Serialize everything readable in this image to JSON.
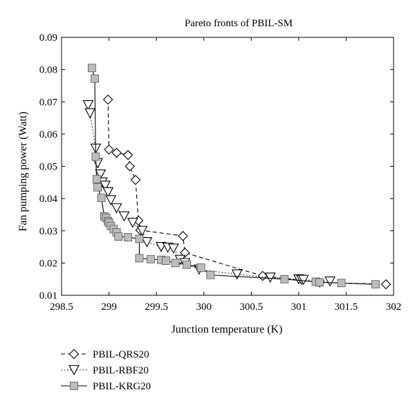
{
  "chart_data": {
    "type": "scatter",
    "title": "Pareto fronts of PBIL-SM",
    "xlabel": "Junction temperature (K)",
    "ylabel": "Fan pumping power (Watt)",
    "xlim": [
      298.5,
      302
    ],
    "ylim": [
      0.01,
      0.09
    ],
    "xticks": [
      "298.5",
      "299",
      "299.5",
      "300",
      "300.5",
      "301",
      "301.5",
      "302"
    ],
    "yticks": [
      "0.01",
      "0.02",
      "0.03",
      "0.04",
      "0.05",
      "0.06",
      "0.07",
      "0.08",
      "0.09"
    ],
    "grid": false,
    "legend_position": "below-left",
    "series": [
      {
        "name": "PBIL-QRS20",
        "marker": "diamond",
        "line_style": "dashed",
        "color": "#000000",
        "x": [
          298.99,
          299.0,
          299.08,
          299.2,
          299.22,
          299.28,
          299.31,
          299.33,
          299.78,
          299.8,
          300.62,
          301.22,
          301.92
        ],
        "y": [
          0.0707,
          0.0552,
          0.0542,
          0.0535,
          0.05,
          0.0458,
          0.0332,
          0.0302,
          0.0284,
          0.0232,
          0.016,
          0.014,
          0.0134
        ]
      },
      {
        "name": "PBIL-RBF20",
        "marker": "triangle-down",
        "line_style": "dotted",
        "color": "#000000",
        "x": [
          298.78,
          298.8,
          298.86,
          298.88,
          298.91,
          298.93,
          298.96,
          298.99,
          299.02,
          299.08,
          299.16,
          299.25,
          299.35,
          299.4,
          299.55,
          299.62,
          299.68,
          299.75,
          299.8,
          299.95,
          300.35,
          300.7,
          301.0,
          301.03,
          301.05,
          301.33
        ],
        "y": [
          0.069,
          0.0665,
          0.0555,
          0.051,
          0.0475,
          0.045,
          0.044,
          0.042,
          0.0395,
          0.037,
          0.0345,
          0.0325,
          0.03,
          0.0265,
          0.025,
          0.0248,
          0.0245,
          0.021,
          0.02,
          0.018,
          0.0165,
          0.0155,
          0.015,
          0.0148,
          0.0148,
          0.0143
        ]
      },
      {
        "name": "PBIL-KRG20",
        "marker": "square",
        "line_style": "solid",
        "color": "#000000",
        "fill": "#bcbcbc",
        "x": [
          298.82,
          298.85,
          298.86,
          298.87,
          298.88,
          298.92,
          298.95,
          298.97,
          298.99,
          299.0,
          299.02,
          299.05,
          299.08,
          299.1,
          299.2,
          299.32,
          299.32,
          299.44,
          299.55,
          299.6,
          299.7,
          299.82,
          299.97,
          300.07,
          300.85,
          301.18,
          301.22,
          301.45,
          301.81
        ],
        "y": [
          0.0805,
          0.0772,
          0.053,
          0.046,
          0.0435,
          0.0402,
          0.0345,
          0.034,
          0.033,
          0.0325,
          0.0315,
          0.0305,
          0.0295,
          0.0282,
          0.028,
          0.0275,
          0.0215,
          0.0212,
          0.021,
          0.0207,
          0.02,
          0.0195,
          0.0186,
          0.0163,
          0.015,
          0.0142,
          0.014,
          0.0138,
          0.0134
        ]
      }
    ]
  }
}
